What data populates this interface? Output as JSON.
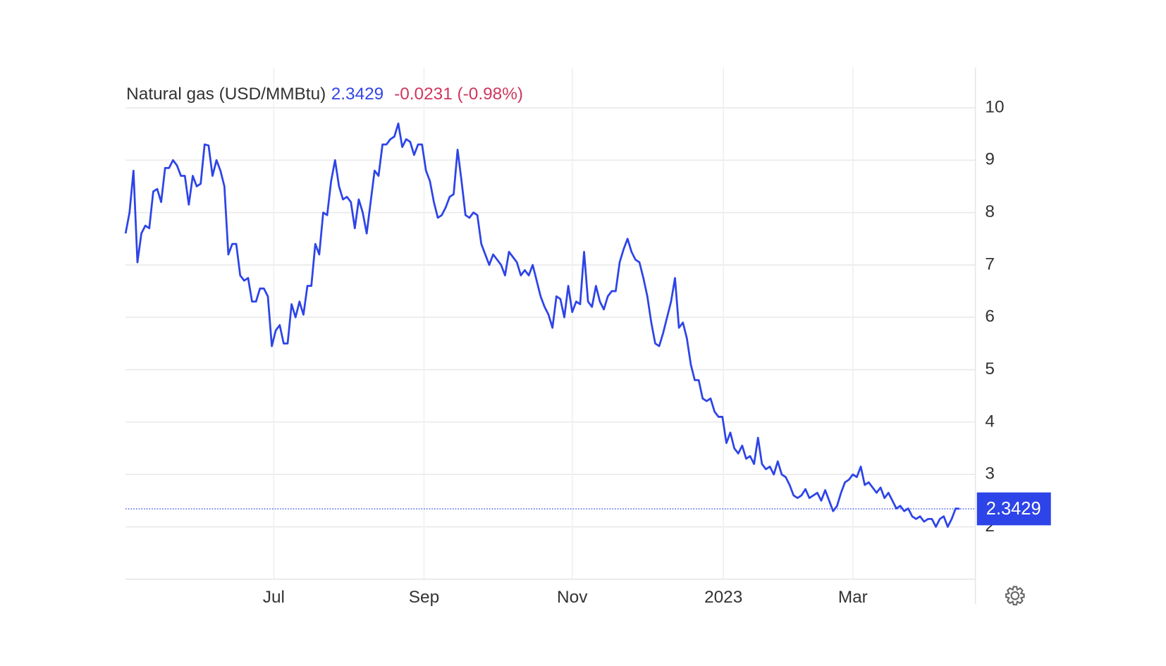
{
  "chart_data": {
    "type": "line",
    "title": "Natural gas (USD/MMBtu)",
    "change_label": "-0.0231 (-0.98%)",
    "xticks": [
      {
        "value": 37.5,
        "label": "Jul"
      },
      {
        "value": 75.5,
        "label": "Sep"
      },
      {
        "value": 113,
        "label": "Nov"
      },
      {
        "value": 151.25,
        "label": "2023"
      },
      {
        "value": 184,
        "label": "Mar"
      }
    ],
    "xlim": [
      0,
      215
    ],
    "ylim": [
      1,
      10.8
    ],
    "yticks": [
      2,
      3,
      4,
      5,
      6,
      7,
      8,
      9,
      10
    ],
    "grid": true,
    "series": [
      {
        "name": "Natural gas",
        "color": "#2d44e8",
        "values": [
          7.6,
          8.0,
          8.8,
          7.05,
          7.6,
          7.75,
          7.7,
          8.4,
          8.45,
          8.2,
          8.85,
          8.85,
          9.0,
          8.9,
          8.7,
          8.7,
          8.15,
          8.7,
          8.5,
          8.55,
          9.3,
          9.28,
          8.7,
          9.0,
          8.8,
          8.5,
          7.2,
          7.4,
          7.4,
          6.8,
          6.7,
          6.75,
          6.3,
          6.3,
          6.55,
          6.55,
          6.4,
          5.45,
          5.75,
          5.85,
          5.5,
          5.5,
          6.25,
          6.0,
          6.3,
          6.05,
          6.6,
          6.6,
          7.4,
          7.2,
          8.0,
          7.95,
          8.6,
          9.0,
          8.5,
          8.25,
          8.3,
          8.2,
          7.7,
          8.25,
          8.0,
          7.6,
          8.2,
          8.8,
          8.7,
          9.3,
          9.3,
          9.4,
          9.45,
          9.7,
          9.25,
          9.4,
          9.35,
          9.1,
          9.3,
          9.3,
          8.8,
          8.6,
          8.2,
          7.9,
          7.95,
          8.1,
          8.3,
          8.35,
          9.2,
          8.6,
          7.95,
          7.9,
          8.0,
          7.95,
          7.4,
          7.2,
          7.0,
          7.2,
          7.1,
          7.0,
          6.8,
          7.25,
          7.15,
          7.05,
          6.8,
          6.9,
          6.8,
          7.0,
          6.7,
          6.4,
          6.2,
          6.05,
          5.8,
          6.4,
          6.35,
          6.0,
          6.6,
          6.1,
          6.3,
          6.25,
          7.25,
          6.3,
          6.2,
          6.6,
          6.3,
          6.15,
          6.4,
          6.5,
          6.5,
          7.05,
          7.3,
          7.5,
          7.25,
          7.1,
          7.05,
          6.75,
          6.4,
          5.9,
          5.5,
          5.45,
          5.7,
          6.0,
          6.3,
          6.75,
          5.8,
          5.9,
          5.6,
          5.1,
          4.8,
          4.8,
          4.45,
          4.4,
          4.45,
          4.2,
          4.1,
          4.1,
          3.6,
          3.8,
          3.5,
          3.4,
          3.55,
          3.3,
          3.35,
          3.2,
          3.7,
          3.2,
          3.1,
          3.15,
          3.0,
          3.25,
          3.0,
          2.95,
          2.8,
          2.6,
          2.55,
          2.6,
          2.72,
          2.55,
          2.6,
          2.65,
          2.5,
          2.7,
          2.5,
          2.3,
          2.4,
          2.65,
          2.85,
          2.9,
          3.0,
          2.95,
          3.15,
          2.8,
          2.85,
          2.75,
          2.65,
          2.75,
          2.55,
          2.65,
          2.5,
          2.35,
          2.4,
          2.3,
          2.35,
          2.2,
          2.15,
          2.2,
          2.1,
          2.15,
          2.15,
          2.0,
          2.15,
          2.2,
          2.0,
          2.15,
          2.35,
          2.3429
        ]
      }
    ]
  }
}
